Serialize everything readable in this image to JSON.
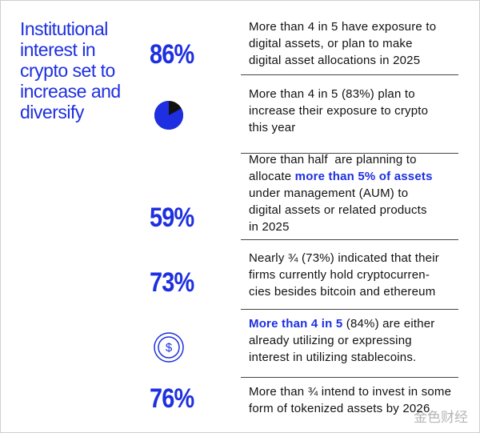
{
  "title": "Institutional interest in crypto set to increase and diversify",
  "rows": [
    {
      "stat": "86%",
      "lines": [
        [
          {
            "text": "More than 4 in 5 have exposure to"
          }
        ],
        [
          {
            "text": "digital assets, or plan to make"
          }
        ],
        [
          {
            "text": "digital asset allocations in 2025"
          }
        ]
      ]
    },
    {
      "pie": 83,
      "lines": [
        [
          {
            "text": "More than 4 in 5 (83%) plan to"
          }
        ],
        [
          {
            "text": "increase their exposure to crypto"
          }
        ],
        [
          {
            "text": "this year"
          }
        ]
      ]
    },
    {
      "stat": "59%",
      "lines": [
        [
          {
            "text": "More than half  are planning to"
          }
        ],
        [
          {
            "text": "allocate "
          },
          {
            "text": "more than 5% of assets",
            "em": true
          }
        ],
        [
          {
            "text": "under management (AUM) to"
          }
        ],
        [
          {
            "text": "digital assets or related products"
          }
        ],
        [
          {
            "text": "in 2025"
          }
        ]
      ]
    },
    {
      "stat": "73%",
      "lines": [
        [
          {
            "text": "Nearly ¾ (73%) indicated that their"
          }
        ],
        [
          {
            "text": "firms currently hold cryptocurren-"
          }
        ],
        [
          {
            "text": "cies besides bitcoin and ethereum"
          }
        ]
      ]
    },
    {
      "icon": "$",
      "lines": [
        [
          {
            "text": "More than 4 in 5",
            "em": true
          },
          {
            "text": " (84%) are either"
          }
        ],
        [
          {
            "text": "already utilizing or expressing"
          }
        ],
        [
          {
            "text": "interest in utilizing stablecoins."
          }
        ]
      ]
    },
    {
      "stat": "76%",
      "lines": [
        [
          {
            "text": "More than ¾ intend to invest in some"
          }
        ],
        [
          {
            "text": "form of tokenized assets by 2026"
          }
        ]
      ]
    }
  ],
  "watermark": "金色财经"
}
